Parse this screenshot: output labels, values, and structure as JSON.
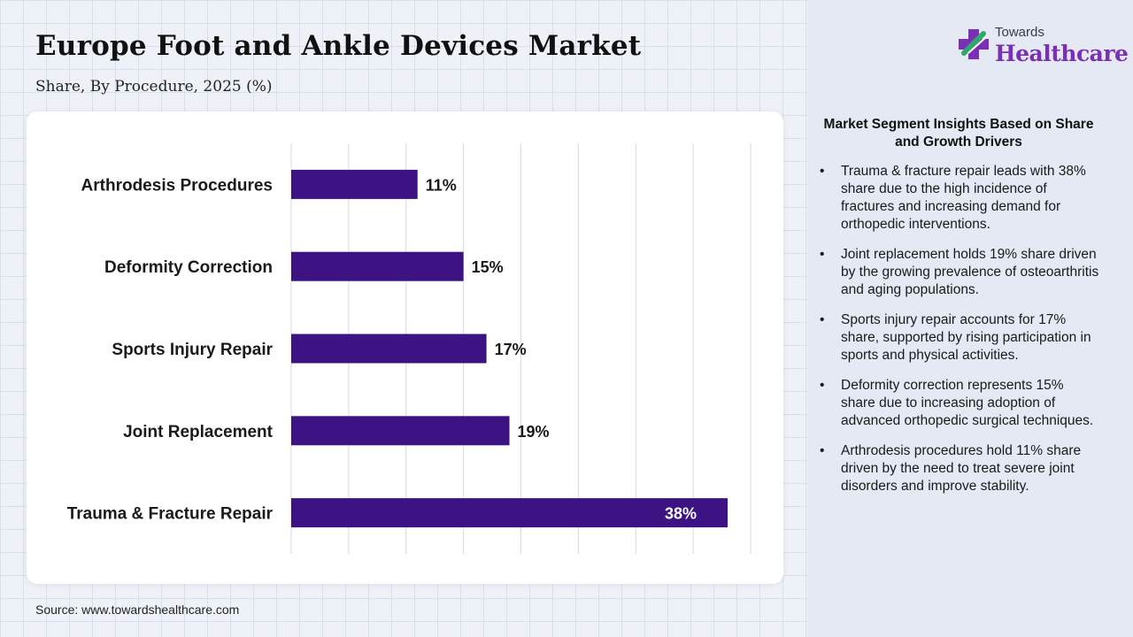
{
  "header": {
    "title": "Europe Foot and Ankle Devices Market",
    "subtitle": "Share, By Procedure, 2025 (%)"
  },
  "logo": {
    "small_text": "Towards",
    "big_text": "Healthcare"
  },
  "source": "Source: www.towardshealthcare.com",
  "colors": {
    "bar": "#3d1282",
    "accent": "#7b2fb8",
    "logo_green": "#2fa86b"
  },
  "chart_data": {
    "type": "bar",
    "orientation": "horizontal",
    "title": "Europe Foot and Ankle Devices Market",
    "subtitle": "Share, By Procedure, 2025 (%)",
    "categories": [
      "Arthrodesis Procedures",
      "Deformity Correction",
      "Sports Injury Repair",
      "Joint Replacement",
      "Trauma & Fracture Repair"
    ],
    "values": [
      11,
      15,
      17,
      19,
      38
    ],
    "value_labels": [
      "11%",
      "15%",
      "17%",
      "19%",
      "38%"
    ],
    "xlim": [
      0,
      40
    ],
    "grid": true,
    "legend": "none"
  },
  "insights": {
    "title": "Market Segment Insights Based on Share and Growth Drivers",
    "items": [
      "Trauma & fracture repair leads with 38% share due to the high incidence of fractures and increasing demand for orthopedic interventions.",
      "Joint replacement holds 19% share driven by the growing prevalence of osteoarthritis and aging populations.",
      "Sports injury repair accounts for 17% share, supported by rising participation in sports and physical activities.",
      "Deformity correction represents 15% share due to increasing adoption of advanced orthopedic surgical techniques.",
      "Arthrodesis procedures hold 11% share driven by the need to treat severe joint disorders and improve stability."
    ]
  }
}
